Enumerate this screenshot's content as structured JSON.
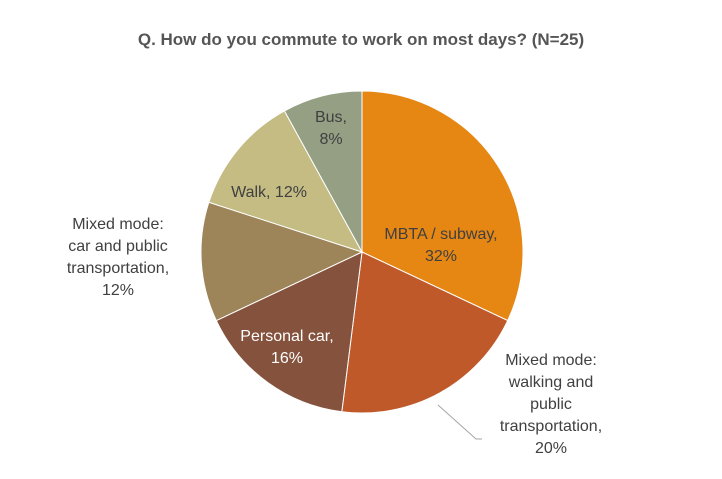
{
  "chart_data": {
    "type": "pie",
    "title": "Q. How do you commute to work on most days? (N=25)",
    "slices": [
      {
        "lines": [
          "MBTA / subway,",
          "32%"
        ],
        "value": 32,
        "color": "#E68613"
      },
      {
        "lines": [
          "Mixed mode:",
          "walking and",
          "public",
          "transportation,",
          "20%"
        ],
        "value": 20,
        "color": "#C0592A"
      },
      {
        "lines": [
          "Personal car,",
          "16%"
        ],
        "value": 16,
        "color": "#85533D"
      },
      {
        "lines": [
          "Mixed mode:",
          "car and public",
          "transportation,",
          "12%"
        ],
        "value": 12,
        "color": "#9D8459"
      },
      {
        "lines": [
          "Walk, 12%"
        ],
        "value": 12,
        "color": "#C4BC83"
      },
      {
        "lines": [
          "Bus,",
          "8%"
        ],
        "value": 8,
        "color": "#949F84"
      }
    ]
  }
}
